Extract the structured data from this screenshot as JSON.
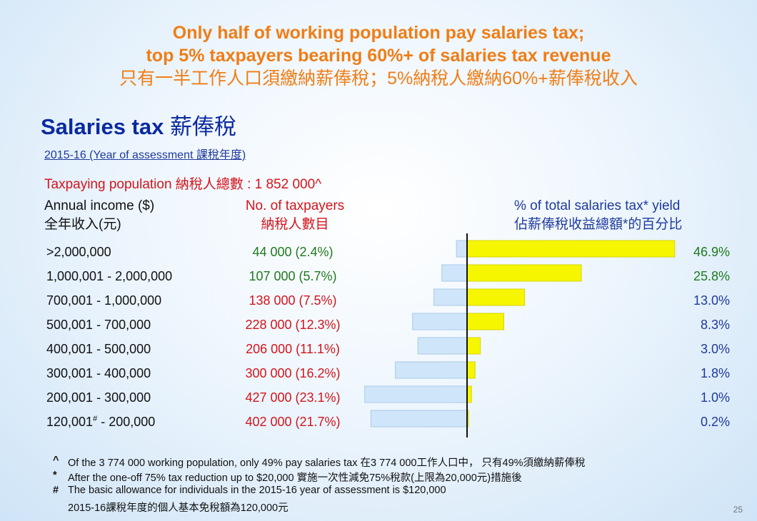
{
  "title": {
    "line1": "Only half of working population pay salaries tax;",
    "line2": "top 5% taxpayers bearing 60%+ of salaries tax revenue",
    "line3": "只有一半工作人口須繳納薪俸稅；5%納稅人繳納60%+薪俸稅收入"
  },
  "heading": {
    "en": "Salaries tax",
    "cn": "薪俸稅"
  },
  "year_of_assessment": "2015-16 (Year of assessment 課稅年度)",
  "taxpaying_population": "Taxpaying population 納稅人總數 : 1 852 000^",
  "columns": {
    "income_en": "Annual income ($)",
    "income_cn": "全年收入(元)",
    "count_en": "No. of taxpayers",
    "count_cn": "納稅人數目",
    "yield_en": "% of total salaries tax* yield",
    "yield_cn": "佔薪俸稅收益總額*的百分比"
  },
  "rows": [
    {
      "band": ">2,000,000",
      "sup": "",
      "band_tail": "",
      "count": "44 000 (2.4%)",
      "count_color": "#1e7a1e",
      "yield": "46.9%",
      "yield_color": "#1e7a1e"
    },
    {
      "band": "1,000,001 - 2,000,000",
      "sup": "",
      "band_tail": "",
      "count": "107 000 (5.7%)",
      "count_color": "#1e7a1e",
      "yield": "25.8%",
      "yield_color": "#1e7a1e"
    },
    {
      "band": "700,001 - 1,000,000",
      "sup": "",
      "band_tail": "",
      "count": "138 000 (7.5%)",
      "count_color": "#d4141c",
      "yield": "13.0%",
      "yield_color": "#1f3a9c"
    },
    {
      "band": "500,001 - 700,000",
      "sup": "",
      "band_tail": "",
      "count": "228 000 (12.3%)",
      "count_color": "#d4141c",
      "yield": "8.3%",
      "yield_color": "#1f3a9c"
    },
    {
      "band": "400,001 - 500,000",
      "sup": "",
      "band_tail": "",
      "count": "206 000 (11.1%)",
      "count_color": "#d4141c",
      "yield": "3.0%",
      "yield_color": "#1f3a9c"
    },
    {
      "band": "300,001 - 400,000",
      "sup": "",
      "band_tail": "",
      "count": "300 000 (16.2%)",
      "count_color": "#d4141c",
      "yield": "1.8%",
      "yield_color": "#1f3a9c"
    },
    {
      "band": "200,001 - 300,000",
      "sup": "",
      "band_tail": "",
      "count": "427 000 (23.1%)",
      "count_color": "#d4141c",
      "yield": "1.0%",
      "yield_color": "#1f3a9c"
    },
    {
      "band": "120,001",
      "sup": "#",
      "band_tail": " - 200,000",
      "count": "402 000 (21.7%)",
      "count_color": "#d4141c",
      "yield": "0.2%",
      "yield_color": "#1f3a9c"
    }
  ],
  "chart_data": {
    "type": "bar",
    "orientation": "horizontal-butterfly",
    "categories": [
      ">2,000,000",
      "1,000,001 - 2,000,000",
      "700,001 - 1,000,000",
      "500,001 - 700,000",
      "400,001 - 500,000",
      "300,001 - 400,000",
      "200,001 - 300,000",
      "120,001# - 200,000"
    ],
    "series": [
      {
        "values": [
          2.4,
          5.7,
          7.5,
          12.3,
          11.1,
          16.2,
          23.1,
          21.7
        ],
        "color": "#cfe6fa",
        "side": "left"
      },
      {
        "values": [
          46.9,
          25.8,
          13.0,
          8.3,
          3.0,
          1.8,
          1.0,
          0.2
        ],
        "color": "#f6f600",
        "side": "right"
      }
    ],
    "axis_color": "#111111"
  },
  "notes": [
    {
      "mark": "^",
      "text": "Of the 3 774 000 working population, only 49% pay salaries tax  在3 774 000工作人口中， 只有49%須繳納薪俸稅"
    },
    {
      "mark": "*",
      "text": "After the one-off 75% tax reduction up to $20,000  實施一次性減免75%稅款(上限為20,000元)措施後"
    },
    {
      "mark": "#",
      "text": "The basic allowance for individuals in the 2015-16 year of assessment is $120,000"
    },
    {
      "mark": "",
      "text": "2015-16課稅年度的個人基本免稅額為120,000元"
    }
  ],
  "page_number": "25"
}
